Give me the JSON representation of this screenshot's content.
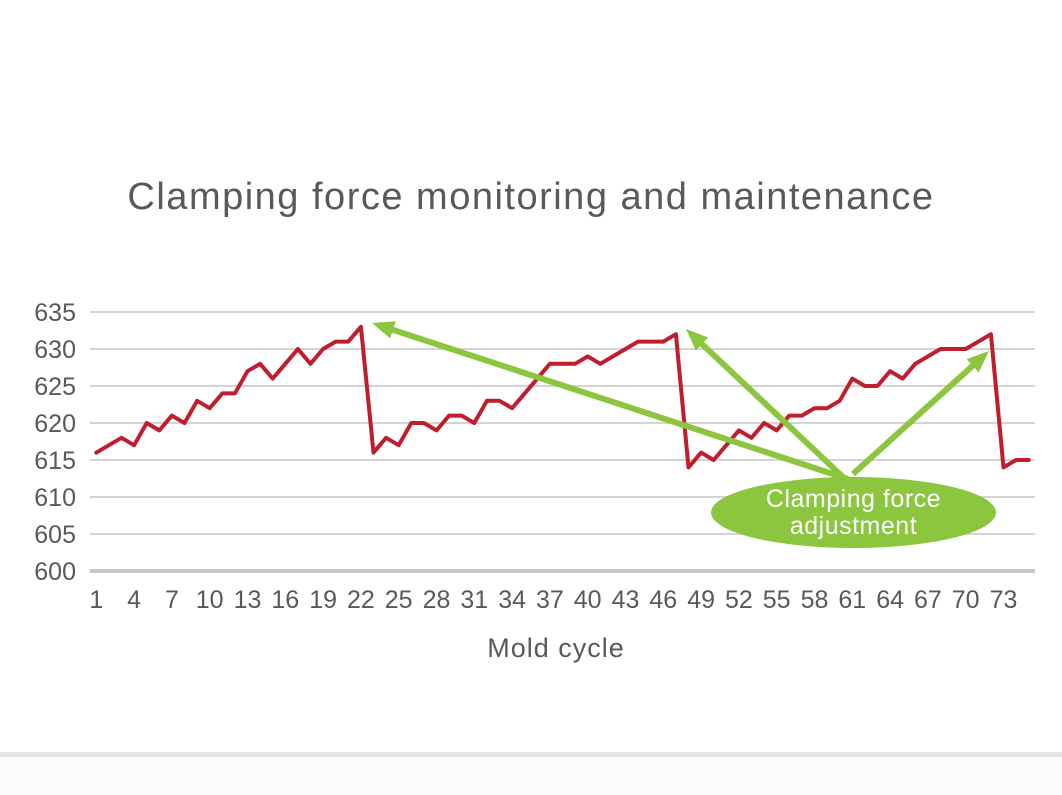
{
  "page": {
    "background": "#ffffff"
  },
  "chart_data": {
    "type": "line",
    "title": "Clamping force monitoring and maintenance",
    "xlabel": "Mold cycle",
    "ylabel": "",
    "series_name": "Clamping force",
    "x": [
      1,
      2,
      3,
      4,
      5,
      6,
      7,
      8,
      9,
      10,
      11,
      12,
      13,
      14,
      15,
      16,
      17,
      18,
      19,
      20,
      21,
      22,
      23,
      24,
      25,
      26,
      27,
      28,
      29,
      30,
      31,
      32,
      33,
      34,
      35,
      36,
      37,
      38,
      39,
      40,
      41,
      42,
      43,
      44,
      45,
      46,
      47,
      48,
      49,
      50,
      51,
      52,
      53,
      54,
      55,
      56,
      57,
      58,
      59,
      60,
      61,
      62,
      63,
      64,
      65,
      66,
      67,
      68,
      69,
      70,
      71,
      72,
      73,
      74,
      75
    ],
    "values": [
      616,
      617,
      618,
      617,
      620,
      619,
      621,
      620,
      623,
      622,
      624,
      624,
      627,
      628,
      626,
      628,
      630,
      628,
      630,
      631,
      631,
      633,
      616,
      618,
      617,
      620,
      620,
      619,
      621,
      621,
      620,
      623,
      623,
      622,
      624,
      626,
      628,
      628,
      628,
      629,
      628,
      629,
      630,
      631,
      631,
      631,
      632,
      614,
      616,
      615,
      617,
      619,
      618,
      620,
      619,
      621,
      621,
      622,
      622,
      623,
      626,
      625,
      625,
      627,
      626,
      628,
      629,
      630,
      630,
      630,
      631,
      632,
      614,
      615,
      615
    ],
    "ylim": [
      600,
      635
    ],
    "y_ticks": [
      600,
      605,
      610,
      615,
      620,
      625,
      630,
      635
    ],
    "x_tick_labels": [
      1,
      4,
      7,
      10,
      13,
      16,
      19,
      22,
      25,
      28,
      31,
      34,
      37,
      40,
      43,
      46,
      49,
      52,
      55,
      58,
      61,
      64,
      67,
      70,
      73
    ],
    "x_tick_step": 3,
    "grid": "horizontal",
    "legend": "none",
    "line_color": "#be1e2d",
    "accent_green": "#8cc63f",
    "text_color": "#58595b",
    "gridline_color": "#d4d4d4",
    "axis_line_color": "#c6c6c6",
    "annotation": {
      "label_line1": "Clamping force",
      "label_line2": "adjustment",
      "text_color": "#ffffff",
      "fill": "#8cc63f",
      "points_to_cycles": [
        22,
        47,
        72
      ]
    },
    "adjustment_peaks": [
      {
        "cycle": 22,
        "value": 633
      },
      {
        "cycle": 47,
        "value": 632
      },
      {
        "cycle": 72,
        "value": 632
      }
    ]
  }
}
